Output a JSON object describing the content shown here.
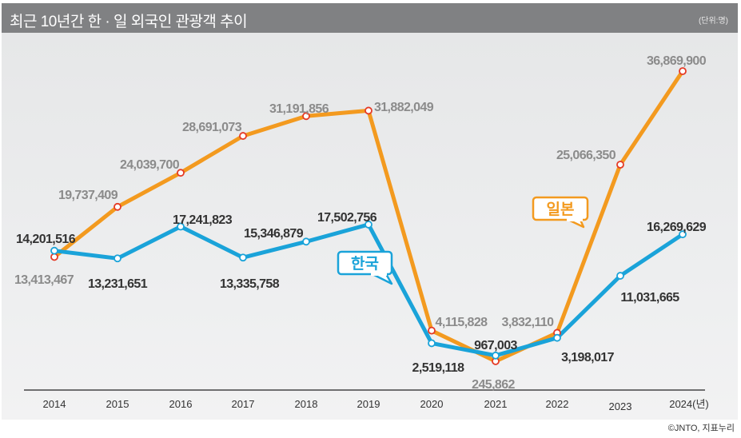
{
  "title": "최근 10년간 한 · 일 외국인 관광객 추이",
  "unit": "(단위:명)",
  "source": "©JNTO, 지표누리",
  "colors": {
    "japan": "#f39a1f",
    "korea": "#1aa3d9",
    "japan_marker": "#e53a26",
    "japan_label": "#8b8b8b",
    "korea_label": "#333333"
  },
  "chart_data": {
    "type": "line",
    "title": "최근 10년간 한 · 일 외국인 관광객 추이",
    "xlabel": "",
    "ylabel": "",
    "categories": [
      "2014",
      "2015",
      "2016",
      "2017",
      "2018",
      "2019",
      "2020",
      "2021",
      "2022",
      "2023",
      "2024(년)"
    ],
    "series": [
      {
        "name": "일본",
        "values": [
          13413467,
          19737409,
          24039700,
          28691073,
          31191856,
          31882049,
          4115828,
          245862,
          3832110,
          25066350,
          36869900
        ],
        "labels": [
          "13,413,467",
          "19,737,409",
          "24,039,700",
          "28,691,073",
          "31,191,856",
          "31,882,049",
          "4,115,828",
          "245,862",
          "3,832,110",
          "25,066,350",
          "36,869,900"
        ]
      },
      {
        "name": "한국",
        "values": [
          14201516,
          13231651,
          17241823,
          13335758,
          15346879,
          17502756,
          2519118,
          967003,
          3198017,
          11031665,
          16269629
        ],
        "labels": [
          "14,201,516",
          "13,231,651",
          "17,241,823",
          "13,335,758",
          "15,346,879",
          "17,502,756",
          "2,519,118",
          "967,003",
          "3,198,017",
          "11,031,665",
          "16,269,629"
        ]
      }
    ],
    "grid": false,
    "legend": "inline callouts"
  }
}
